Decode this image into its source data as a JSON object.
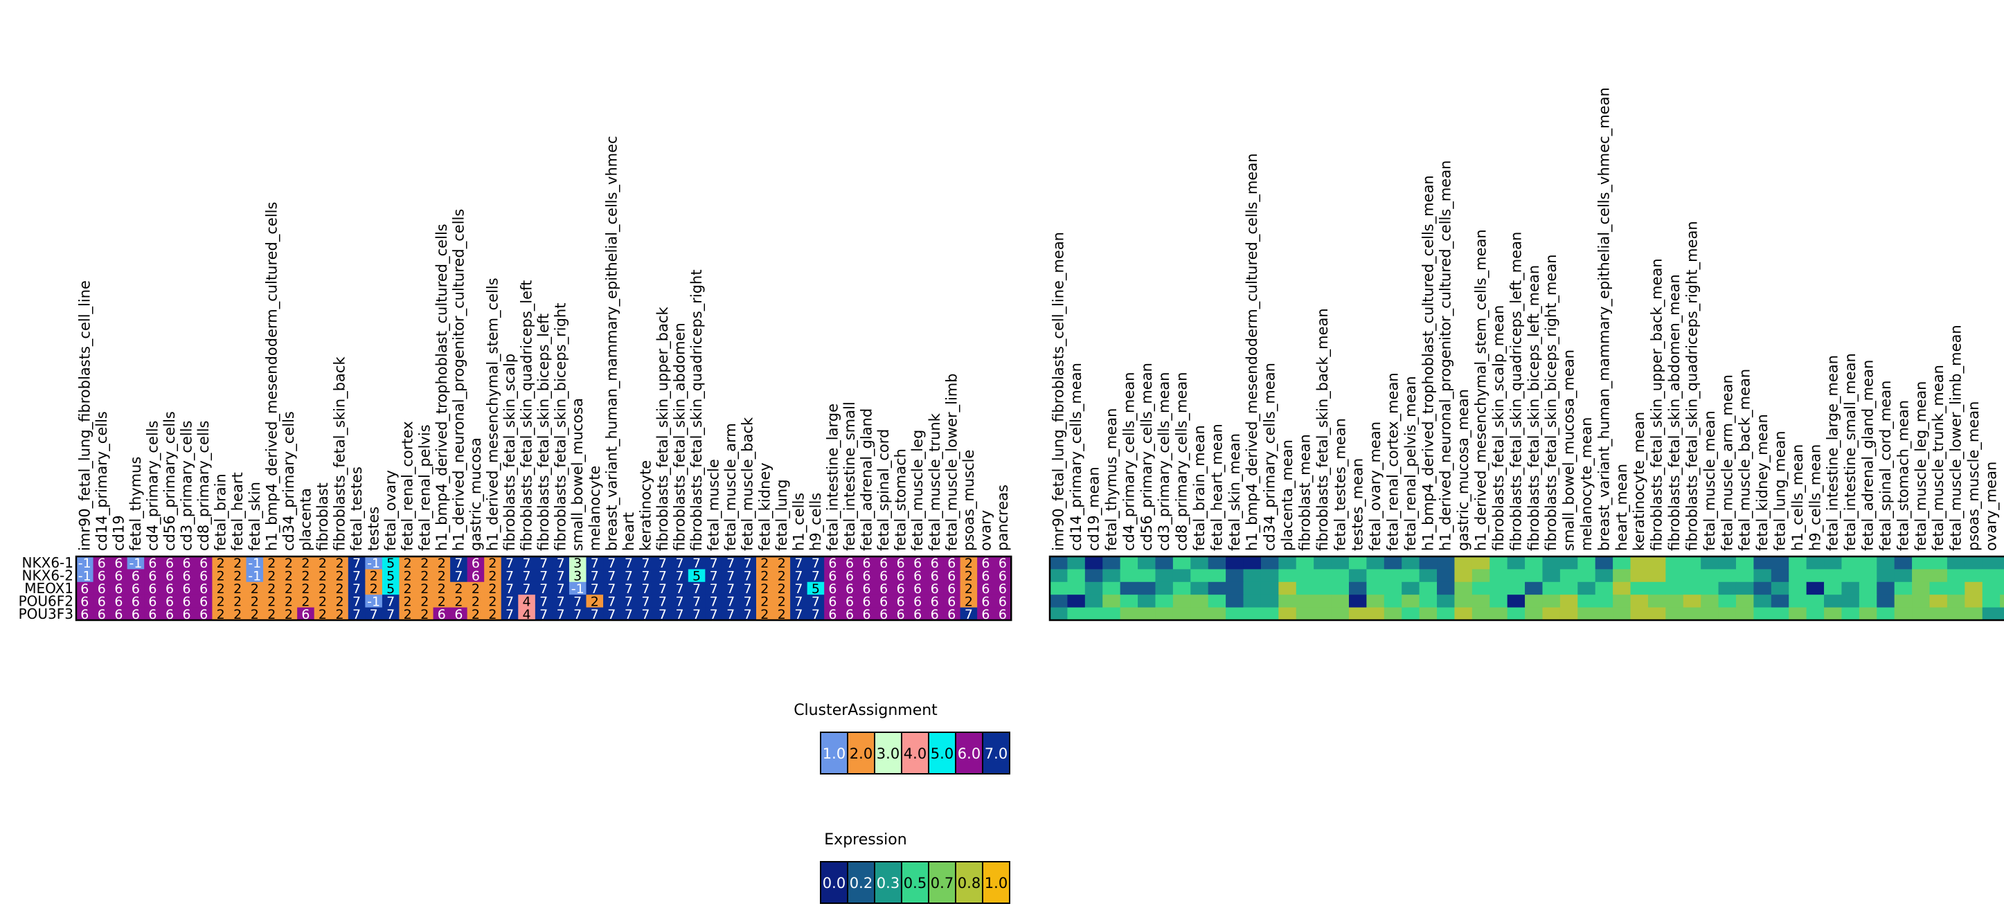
{
  "chart_data": [
    {
      "type": "heatmap",
      "name": "cluster-assignment-heatmap",
      "rows": [
        "NKX6-1",
        "NKX6-2",
        "MEOX1",
        "POU6F2",
        "POU3F3"
      ],
      "columns": [
        "imr90_fetal_lung_fibroblasts_cell_line",
        "cd14_primary_cells",
        "cd19",
        "fetal_thymus",
        "cd4_primary_cells",
        "cd56_primary_cells",
        "cd3_primary_cells",
        "cd8_primary_cells",
        "fetal_brain",
        "fetal_heart",
        "fetal_skin",
        "h1_bmp4_derived_mesendoderm_cultured_cells",
        "cd34_primary_cells",
        "placenta",
        "fibroblast",
        "fibroblasts_fetal_skin_back",
        "fetal_testes",
        "testes",
        "fetal_ovary",
        "fetal_renal_cortex",
        "fetal_renal_pelvis",
        "h1_bmp4_derived_trophoblast_cultured_cells",
        "h1_derived_neuronal_progenitor_cultured_cells",
        "gastric_mucosa",
        "h1_derived_mesenchymal_stem_cells",
        "fibroblasts_fetal_skin_scalp",
        "fibroblasts_fetal_skin_quadriceps_left",
        "fibroblasts_fetal_skin_biceps_left",
        "fibroblasts_fetal_skin_biceps_right",
        "small_bowel_mucosa",
        "melanocyte",
        "breast_variant_human_mammary_epithelial_cells_vhmec",
        "heart",
        "keratinocyte",
        "fibroblasts_fetal_skin_upper_back",
        "fibroblasts_fetal_skin_abdomen",
        "fibroblasts_fetal_skin_quadriceps_right",
        "fetal_muscle",
        "fetal_muscle_arm",
        "fetal_muscle_back",
        "fetal_kidney",
        "fetal_lung",
        "h1_cells",
        "h9_cells",
        "fetal_intestine_large",
        "fetal_intestine_small",
        "fetal_adrenal_gland",
        "fetal_spinal_cord",
        "fetal_stomach",
        "fetal_muscle_leg",
        "fetal_muscle_trunk",
        "fetal_muscle_lower_limb",
        "psoas_muscle",
        "ovary",
        "pancreas"
      ],
      "values": [
        [
          -1,
          6,
          6,
          -1,
          6,
          6,
          6,
          6,
          2,
          2,
          -1,
          2,
          2,
          2,
          2,
          2,
          7,
          -1,
          5,
          2,
          2,
          2,
          7,
          6,
          2,
          7,
          7,
          7,
          7,
          3,
          7,
          7,
          7,
          7,
          7,
          7,
          7,
          7,
          7,
          7,
          2,
          2,
          7,
          7,
          6,
          6,
          6,
          6,
          6,
          6,
          6,
          6,
          2,
          6,
          6
        ],
        [
          -1,
          6,
          6,
          6,
          6,
          6,
          6,
          6,
          2,
          2,
          -1,
          2,
          2,
          2,
          2,
          2,
          7,
          2,
          5,
          2,
          2,
          2,
          7,
          6,
          2,
          7,
          7,
          7,
          7,
          3,
          7,
          7,
          7,
          7,
          7,
          7,
          5,
          7,
          7,
          7,
          2,
          2,
          7,
          7,
          6,
          6,
          6,
          6,
          6,
          6,
          6,
          6,
          2,
          6,
          6
        ],
        [
          6,
          6,
          6,
          6,
          6,
          6,
          6,
          6,
          2,
          2,
          2,
          2,
          2,
          2,
          2,
          2,
          7,
          2,
          5,
          2,
          2,
          2,
          2,
          2,
          2,
          7,
          7,
          7,
          7,
          -1,
          7,
          7,
          7,
          7,
          7,
          7,
          7,
          7,
          7,
          7,
          2,
          2,
          7,
          5,
          6,
          6,
          6,
          6,
          6,
          6,
          6,
          6,
          2,
          6,
          6
        ],
        [
          6,
          6,
          6,
          6,
          6,
          6,
          6,
          6,
          2,
          2,
          2,
          2,
          2,
          2,
          2,
          2,
          7,
          -1,
          7,
          2,
          2,
          2,
          2,
          2,
          2,
          7,
          4,
          7,
          7,
          7,
          2,
          7,
          7,
          7,
          7,
          7,
          7,
          7,
          7,
          7,
          2,
          2,
          7,
          7,
          6,
          6,
          6,
          6,
          6,
          6,
          6,
          6,
          2,
          6,
          6
        ],
        [
          6,
          6,
          6,
          6,
          6,
          6,
          6,
          6,
          2,
          2,
          2,
          2,
          2,
          6,
          2,
          2,
          7,
          7,
          7,
          2,
          2,
          6,
          6,
          2,
          2,
          7,
          4,
          7,
          7,
          7,
          7,
          7,
          7,
          7,
          7,
          7,
          7,
          7,
          7,
          7,
          2,
          2,
          7,
          7,
          6,
          6,
          6,
          6,
          6,
          6,
          6,
          6,
          7,
          6,
          6
        ]
      ]
    },
    {
      "type": "heatmap",
      "name": "expression-heatmap",
      "rows": [
        "NKX6-1",
        "NKX6-2",
        "MEOX1",
        "POU6F2",
        "POU3F3"
      ],
      "columns": [
        "imr90_fetal_lung_fibroblasts_cell_line_mean",
        "cd14_primary_cells_mean",
        "cd19_mean",
        "fetal_thymus_mean",
        "cd4_primary_cells_mean",
        "cd56_primary_cells_mean",
        "cd3_primary_cells_mean",
        "cd8_primary_cells_mean",
        "fetal_brain_mean",
        "fetal_heart_mean",
        "fetal_skin_mean",
        "h1_bmp4_derived_mesendoderm_cultured_cells_mean",
        "cd34_primary_cells_mean",
        "placenta_mean",
        "fibroblast_mean",
        "fibroblasts_fetal_skin_back_mean",
        "fetal_testes_mean",
        "testes_mean",
        "fetal_ovary_mean",
        "fetal_renal_cortex_mean",
        "fetal_renal_pelvis_mean",
        "h1_bmp4_derived_trophoblast_cultured_cells_mean",
        "h1_derived_neuronal_progenitor_cultured_cells_mean",
        "gastric_mucosa_mean",
        "h1_derived_mesenchymal_stem_cells_mean",
        "fibroblasts_fetal_skin_scalp_mean",
        "fibroblasts_fetal_skin_quadriceps_left_mean",
        "fibroblasts_fetal_skin_biceps_left_mean",
        "fibroblasts_fetal_skin_biceps_right_mean",
        "small_bowel_mucosa_mean",
        "melanocyte_mean",
        "breast_variant_human_mammary_epithelial_cells_vhmec_mean",
        "heart_mean",
        "keratinocyte_mean",
        "fibroblasts_fetal_skin_upper_back_mean",
        "fibroblasts_fetal_skin_abdomen_mean",
        "fibroblasts_fetal_skin_quadriceps_right_mean",
        "fetal_muscle_mean",
        "fetal_muscle_arm_mean",
        "fetal_muscle_back_mean",
        "fetal_kidney_mean",
        "fetal_lung_mean",
        "h1_cells_mean",
        "h9_cells_mean",
        "fetal_intestine_large_mean",
        "fetal_intestine_small_mean",
        "fetal_adrenal_gland_mean",
        "fetal_spinal_cord_mean",
        "fetal_stomach_mean",
        "fetal_muscle_leg_mean",
        "fetal_muscle_trunk_mean",
        "fetal_muscle_lower_limb_mean",
        "psoas_muscle_mean",
        "ovary_mean",
        "pancreas_mean"
      ],
      "values": [
        [
          0.2,
          0.3,
          0.0,
          0.2,
          0.5,
          0.3,
          0.2,
          0.5,
          0.3,
          0.2,
          0.0,
          0.0,
          0.2,
          0.3,
          0.5,
          0.3,
          0.3,
          0.5,
          0.3,
          0.2,
          0.3,
          0.2,
          0.2,
          0.8,
          0.8,
          0.5,
          0.3,
          0.5,
          0.3,
          0.3,
          0.5,
          0.2,
          0.5,
          0.8,
          0.8,
          0.5,
          0.5,
          0.3,
          0.3,
          0.5,
          0.2,
          0.2,
          0.5,
          0.3,
          0.3,
          0.5,
          0.5,
          0.3,
          0.2,
          0.5,
          0.5,
          0.3,
          0.3,
          0.3,
          0.3
        ],
        [
          0.3,
          0.5,
          0.2,
          0.3,
          0.5,
          0.5,
          0.3,
          0.3,
          0.5,
          0.5,
          0.2,
          0.3,
          0.3,
          0.5,
          0.5,
          0.5,
          0.5,
          0.3,
          0.5,
          0.5,
          0.5,
          0.3,
          0.2,
          0.8,
          0.7,
          0.5,
          0.5,
          0.5,
          0.3,
          0.5,
          0.5,
          0.3,
          0.7,
          0.8,
          0.8,
          0.5,
          0.5,
          0.5,
          0.5,
          0.5,
          0.3,
          0.2,
          0.5,
          0.5,
          0.5,
          0.5,
          0.5,
          0.3,
          0.3,
          0.7,
          0.7,
          0.5,
          0.5,
          0.5,
          0.5
        ],
        [
          0.5,
          0.5,
          0.3,
          0.5,
          0.2,
          0.2,
          0.3,
          0.5,
          0.3,
          0.2,
          0.2,
          0.3,
          0.3,
          0.8,
          0.5,
          0.5,
          0.5,
          0.2,
          0.5,
          0.5,
          0.3,
          0.5,
          0.2,
          0.7,
          0.5,
          0.5,
          0.5,
          0.2,
          0.5,
          0.5,
          0.3,
          0.5,
          0.8,
          0.5,
          0.5,
          0.5,
          0.5,
          0.5,
          0.3,
          0.3,
          0.2,
          0.3,
          0.5,
          0.0,
          0.5,
          0.3,
          0.5,
          0.2,
          0.5,
          0.7,
          0.5,
          0.5,
          0.8,
          0.5,
          0.5
        ],
        [
          0.2,
          0.0,
          0.3,
          0.7,
          0.5,
          0.3,
          0.5,
          0.7,
          0.7,
          0.5,
          0.2,
          0.3,
          0.3,
          0.7,
          0.7,
          0.7,
          0.7,
          0.0,
          0.7,
          0.5,
          0.7,
          0.5,
          0.3,
          0.7,
          0.7,
          0.5,
          0.0,
          0.7,
          0.7,
          0.8,
          0.5,
          0.5,
          0.7,
          0.8,
          0.7,
          0.7,
          0.8,
          0.7,
          0.5,
          0.7,
          0.3,
          0.2,
          0.5,
          0.5,
          0.3,
          0.3,
          0.5,
          0.2,
          0.7,
          0.7,
          0.8,
          0.7,
          0.8,
          0.5,
          0.7
        ],
        [
          0.3,
          0.5,
          0.5,
          0.5,
          0.7,
          0.7,
          0.7,
          0.7,
          0.7,
          0.7,
          0.5,
          0.5,
          0.5,
          0.8,
          0.7,
          0.7,
          0.7,
          0.8,
          0.8,
          0.7,
          0.5,
          0.7,
          0.5,
          0.8,
          0.7,
          0.7,
          0.5,
          0.7,
          0.8,
          0.8,
          0.7,
          0.7,
          0.7,
          0.8,
          0.8,
          0.7,
          0.7,
          0.7,
          0.7,
          0.7,
          0.5,
          0.5,
          0.7,
          0.5,
          0.7,
          0.5,
          0.7,
          0.5,
          0.7,
          0.7,
          0.7,
          0.7,
          0.7,
          0.3,
          0.3
        ]
      ]
    }
  ],
  "cluster_colors": {
    "-1": "#6b96e8",
    "1": "#6b96e8",
    "2": "#f5973b",
    "3": "#ccffcc",
    "4": "#f99794",
    "5": "#00efef",
    "6": "#8e0f91",
    "7": "#0a2f94"
  },
  "legends": {
    "cluster": {
      "title": "ClusterAssignment",
      "items": [
        {
          "label": "1.0",
          "color": "#6b96e8"
        },
        {
          "label": "2.0",
          "color": "#f5973b"
        },
        {
          "label": "3.0",
          "color": "#ccffcc"
        },
        {
          "label": "4.0",
          "color": "#f99794"
        },
        {
          "label": "5.0",
          "color": "#00efef"
        },
        {
          "label": "6.0",
          "color": "#8e0f91"
        },
        {
          "label": "7.0",
          "color": "#0a2f94"
        }
      ]
    },
    "expression": {
      "title": "Expression",
      "items": [
        {
          "label": "0.0",
          "color": "#0b1f80"
        },
        {
          "label": "0.2",
          "color": "#175a8a"
        },
        {
          "label": "0.3",
          "color": "#1b9a8a"
        },
        {
          "label": "0.5",
          "color": "#36d68c"
        },
        {
          "label": "0.7",
          "color": "#76cd5d"
        },
        {
          "label": "0.8",
          "color": "#b3c53a"
        },
        {
          "label": "1.0",
          "color": "#f5b80f"
        }
      ]
    }
  }
}
